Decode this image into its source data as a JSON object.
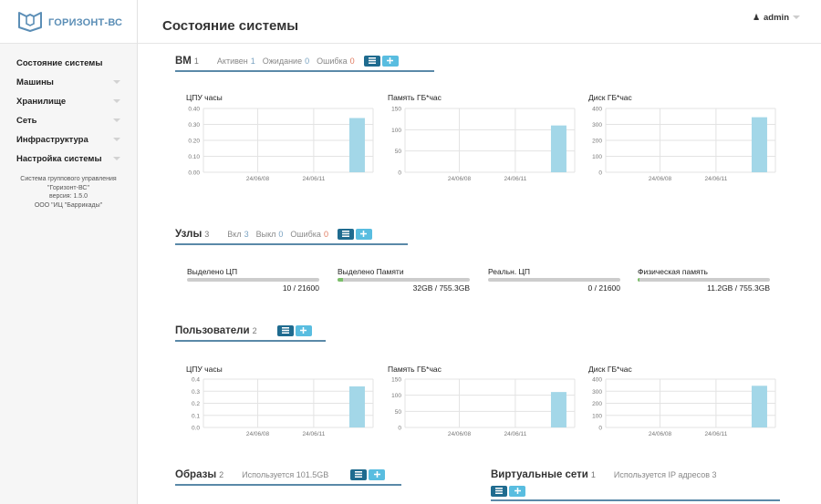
{
  "app": {
    "name": "ГОРИЗОНТ-ВС"
  },
  "header": {
    "title": "Состояние системы",
    "user": "admin"
  },
  "sidebar": {
    "items": [
      {
        "label": "Состояние системы",
        "has_submenu": false
      },
      {
        "label": "Машины",
        "has_submenu": true
      },
      {
        "label": "Хранилище",
        "has_submenu": true
      },
      {
        "label": "Сеть",
        "has_submenu": true
      },
      {
        "label": "Инфраструктура",
        "has_submenu": true
      },
      {
        "label": "Настройка системы",
        "has_submenu": true
      }
    ],
    "about": [
      "Система группового управления",
      "\"Горизонт-ВС\"",
      "версия: 1.5.0",
      "ООО \"ИЦ \"Баррикады\""
    ]
  },
  "vm": {
    "title": "ВМ",
    "count": "1",
    "active_label": "Активен",
    "active": "1",
    "wait_label": "Ожидание",
    "wait": "0",
    "error_label": "Ошибка",
    "error": "0"
  },
  "hosts": {
    "title": "Узлы",
    "count": "3",
    "on_label": "Вкл",
    "on": "3",
    "off_label": "Выкл",
    "off": "0",
    "error_label": "Ошибка",
    "error": "0",
    "bars": [
      {
        "label": "Выделено ЦП",
        "value": "10 / 21600",
        "fraction": 0.0005
      },
      {
        "label": "Выделено Памяти",
        "value": "32GB / 755.3GB",
        "fraction": 0.042
      },
      {
        "label": "Реальн. ЦП",
        "value": "0 / 21600",
        "fraction": 0
      },
      {
        "label": "Физическая память",
        "value": "11.2GB / 755.3GB",
        "fraction": 0.015
      }
    ]
  },
  "users": {
    "title": "Пользователи",
    "count": "2"
  },
  "images": {
    "title": "Образы",
    "count": "2",
    "used": "Используется 101.5GB"
  },
  "vnets": {
    "title": "Виртуальные сети",
    "count": "1",
    "used": "Используется IP адресов 3"
  },
  "colors": {
    "accent": "#5a89a8",
    "bar": "#a3d7e8",
    "btn_dark": "#1f6b8f",
    "btn_light": "#59bde0"
  },
  "chart_data": [
    {
      "type": "bar",
      "title": "ЦПУ часы",
      "x_ticks": [
        "24/06/08",
        "24/06/11"
      ],
      "y_ticks": [
        "0.00",
        "0.10",
        "0.20",
        "0.30",
        "0.40"
      ],
      "ylim": [
        0,
        0.4
      ],
      "values": [
        0.34
      ]
    },
    {
      "type": "bar",
      "title": "Память ГБ*час",
      "x_ticks": [
        "24/06/08",
        "24/06/11"
      ],
      "y_ticks": [
        "0",
        "50",
        "100",
        "150"
      ],
      "ylim": [
        0,
        150
      ],
      "values": [
        110
      ]
    },
    {
      "type": "bar",
      "title": "Диск ГБ*час",
      "x_ticks": [
        "24/06/08",
        "24/06/11"
      ],
      "y_ticks": [
        "0",
        "100",
        "200",
        "300",
        "400"
      ],
      "ylim": [
        0,
        400
      ],
      "values": [
        345
      ]
    },
    {
      "type": "bar",
      "title": "ЦПУ часы",
      "x_ticks": [
        "24/06/08",
        "24/06/11"
      ],
      "y_ticks": [
        "0.0",
        "0.1",
        "0.2",
        "0.3",
        "0.4"
      ],
      "ylim": [
        0,
        0.4
      ],
      "values": [
        0.34
      ]
    },
    {
      "type": "bar",
      "title": "Память ГБ*час",
      "x_ticks": [
        "24/06/08",
        "24/06/11"
      ],
      "y_ticks": [
        "0",
        "50",
        "100",
        "150"
      ],
      "ylim": [
        0,
        150
      ],
      "values": [
        110
      ]
    },
    {
      "type": "bar",
      "title": "Диск ГБ*час",
      "x_ticks": [
        "24/06/08",
        "24/06/11"
      ],
      "y_ticks": [
        "0",
        "100",
        "200",
        "300",
        "400"
      ],
      "ylim": [
        0,
        400
      ],
      "values": [
        345
      ]
    }
  ]
}
